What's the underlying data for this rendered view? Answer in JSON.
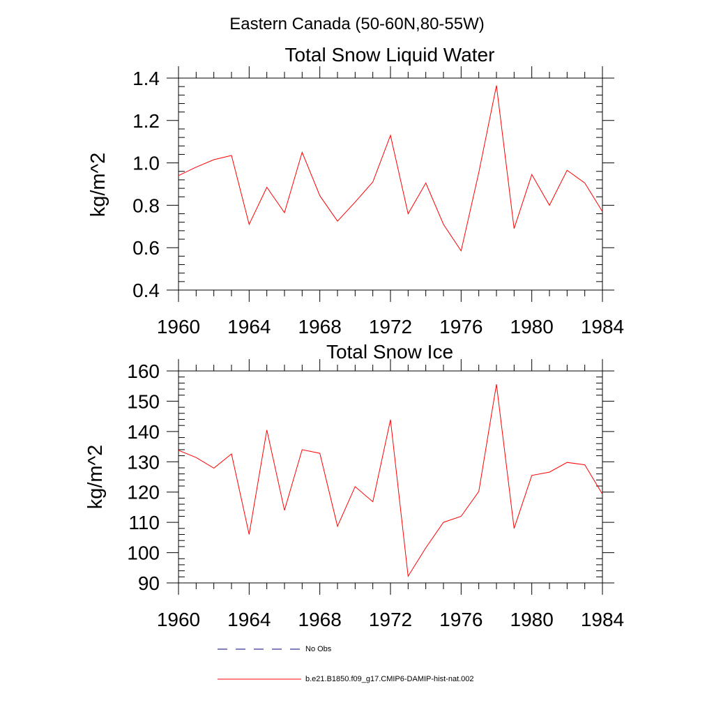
{
  "figure": {
    "suptitle": "Eastern Canada (50-60N,80-55W)"
  },
  "legend": {
    "items": [
      {
        "label": "No Obs",
        "color": "#000080",
        "dash": "dashed"
      },
      {
        "label": "b.e21.B1850.f09_g17.CMIP6-DAMIP-hist-nat.002",
        "color": "#ff0000",
        "dash": "solid"
      }
    ]
  },
  "chart_data": [
    {
      "type": "line",
      "title": "Total Snow Liquid Water",
      "xlabel": "",
      "ylabel": "kg/m^2",
      "xlim": [
        1960,
        1984
      ],
      "ylim": [
        0.4,
        1.4
      ],
      "x_ticks": [
        1960,
        1964,
        1968,
        1972,
        1976,
        1980,
        1984
      ],
      "y_ticks": [
        0.4,
        0.6,
        0.8,
        1.0,
        1.2,
        1.4
      ],
      "y_tick_labels": [
        "0.4",
        "0.6",
        "0.8",
        "1.0",
        "1.2",
        "1.4"
      ],
      "grid": false,
      "series": [
        {
          "name": "b.e21.B1850.f09_g17.CMIP6-DAMIP-hist-nat.002",
          "color": "#ff0000",
          "x": [
            1960,
            1961,
            1962,
            1963,
            1964,
            1965,
            1966,
            1967,
            1968,
            1969,
            1970,
            1971,
            1972,
            1973,
            1974,
            1975,
            1976,
            1977,
            1978,
            1979,
            1980,
            1981,
            1982,
            1983,
            1984
          ],
          "values": [
            0.94,
            0.98,
            1.015,
            1.035,
            0.71,
            0.885,
            0.765,
            1.05,
            0.845,
            0.725,
            0.815,
            0.91,
            1.13,
            0.76,
            0.905,
            0.71,
            0.585,
            0.955,
            1.365,
            0.69,
            0.945,
            0.8,
            0.965,
            0.905,
            0.77
          ]
        }
      ]
    },
    {
      "type": "line",
      "title": "Total Snow Ice",
      "xlabel": "",
      "ylabel": "kg/m^2",
      "xlim": [
        1960,
        1984
      ],
      "ylim": [
        90,
        160
      ],
      "x_ticks": [
        1960,
        1964,
        1968,
        1972,
        1976,
        1980,
        1984
      ],
      "y_ticks": [
        90,
        100,
        110,
        120,
        130,
        140,
        150,
        160
      ],
      "y_tick_labels": [
        "90",
        "100",
        "110",
        "120",
        "130",
        "140",
        "150",
        "160"
      ],
      "grid": false,
      "series": [
        {
          "name": "b.e21.B1850.f09_g17.CMIP6-DAMIP-hist-nat.002",
          "color": "#ff0000",
          "x": [
            1960,
            1961,
            1962,
            1963,
            1964,
            1965,
            1966,
            1967,
            1968,
            1969,
            1970,
            1971,
            1972,
            1973,
            1974,
            1975,
            1976,
            1977,
            1978,
            1979,
            1980,
            1981,
            1982,
            1983,
            1984
          ],
          "values": [
            133.8,
            131.4,
            127.9,
            132.6,
            106,
            140.5,
            114,
            134,
            132.8,
            108.7,
            121.8,
            116.8,
            143.9,
            92.2,
            101.6,
            110,
            112,
            120.2,
            155.6,
            108,
            125.5,
            126.6,
            129.8,
            129,
            119.3
          ]
        }
      ]
    }
  ]
}
